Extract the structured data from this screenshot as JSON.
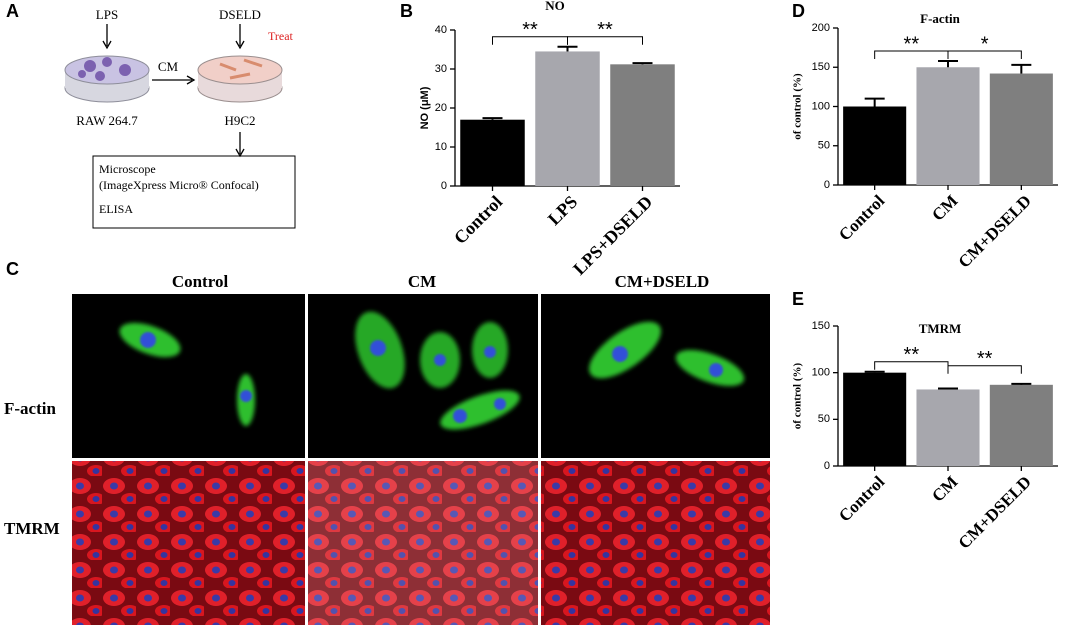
{
  "panels": {
    "a": {
      "label": "A",
      "lps": "LPS",
      "dseld": "DSELD",
      "treat": "Treat",
      "cm": "CM",
      "raw": "RAW 264.7",
      "h9c2": "H9C2",
      "box_lines": [
        "Microscope",
        "(ImageXpress Micro® Confocal)",
        "ELISA"
      ]
    },
    "b": {
      "label": "B"
    },
    "c": {
      "label": "C",
      "columns": [
        "Control",
        "CM",
        "CM+DSELD"
      ],
      "rows": [
        "F-actin",
        "TMRM"
      ]
    },
    "d": {
      "label": "D"
    },
    "e": {
      "label": "E"
    }
  },
  "chart_data": [
    {
      "type": "bar",
      "title": "NO",
      "ylabel": "NO (μM)",
      "categories": [
        "Control",
        "LPS",
        "LPS+DSELD"
      ],
      "values": [
        17,
        34.5,
        31.2
      ],
      "errors": [
        0.4,
        1.2,
        0.3
      ],
      "colors": [
        "#000000",
        "#a7a7ad",
        "#7f7f7f"
      ],
      "ylim": [
        0,
        40
      ],
      "yticks": [
        0,
        10,
        20,
        30,
        40
      ],
      "annotations": [
        "**",
        "**"
      ]
    },
    {
      "type": "bar",
      "title": "F-actin",
      "ylabel": "of control (%)",
      "categories": [
        "Control",
        "CM",
        "CM+DSELD"
      ],
      "values": [
        100,
        150,
        142
      ],
      "errors": [
        10,
        8,
        11
      ],
      "colors": [
        "#000000",
        "#a7a7ad",
        "#7f7f7f"
      ],
      "ylim": [
        0,
        200
      ],
      "yticks": [
        0,
        50,
        100,
        150,
        200
      ],
      "annotations": [
        "**",
        "*"
      ]
    },
    {
      "type": "bar",
      "title": "TMRM",
      "ylabel": "of control (%)",
      "categories": [
        "Control",
        "CM",
        "CM+DSELD"
      ],
      "values": [
        100,
        82,
        87
      ],
      "errors": [
        1,
        1,
        1
      ],
      "colors": [
        "#000000",
        "#a7a7ad",
        "#7f7f7f"
      ],
      "ylim": [
        0,
        150
      ],
      "yticks": [
        0,
        50,
        100,
        150
      ],
      "annotations": [
        "**",
        "**"
      ]
    }
  ]
}
